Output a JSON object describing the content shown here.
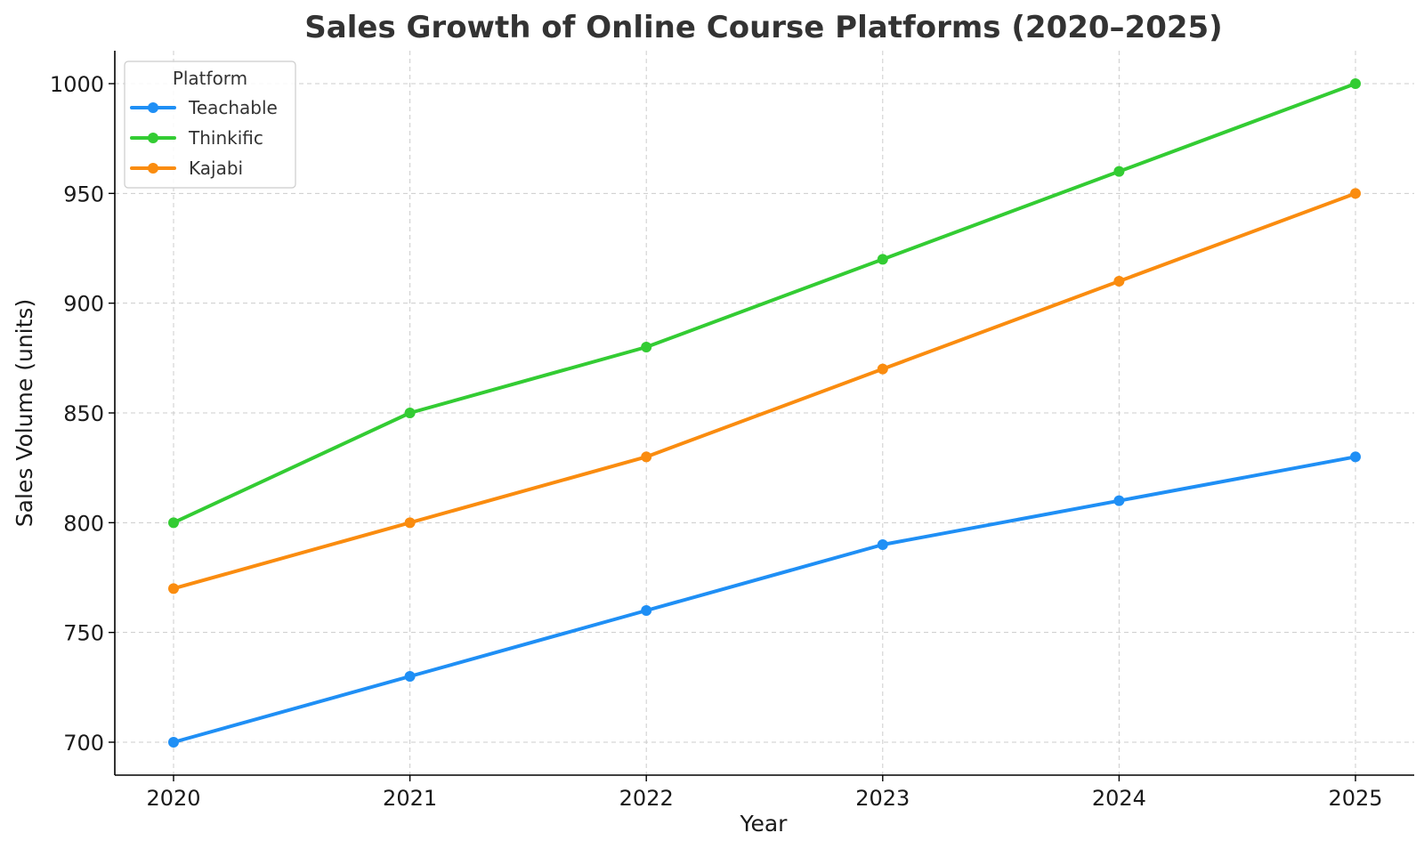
{
  "chart_data": {
    "type": "line",
    "title": "Sales Growth of Online Course Platforms (2020–2025)",
    "xlabel": "Year",
    "ylabel": "Sales Volume (units)",
    "x": [
      "2020",
      "2021",
      "2022",
      "2023",
      "2024",
      "2025"
    ],
    "ylim": [
      685,
      1015
    ],
    "yticks": [
      700,
      750,
      800,
      850,
      900,
      950,
      1000
    ],
    "grid": true,
    "legend": {
      "title": "Platform",
      "placement": "top-left"
    },
    "series": [
      {
        "name": "Teachable",
        "color": "#1f8ff5",
        "values": [
          700,
          730,
          760,
          790,
          810,
          830
        ]
      },
      {
        "name": "Thinkific",
        "color": "#33cc33",
        "values": [
          800,
          850,
          880,
          920,
          960,
          1000
        ]
      },
      {
        "name": "Kajabi",
        "color": "#fa8c0f",
        "values": [
          770,
          800,
          830,
          870,
          910,
          950
        ]
      }
    ]
  }
}
